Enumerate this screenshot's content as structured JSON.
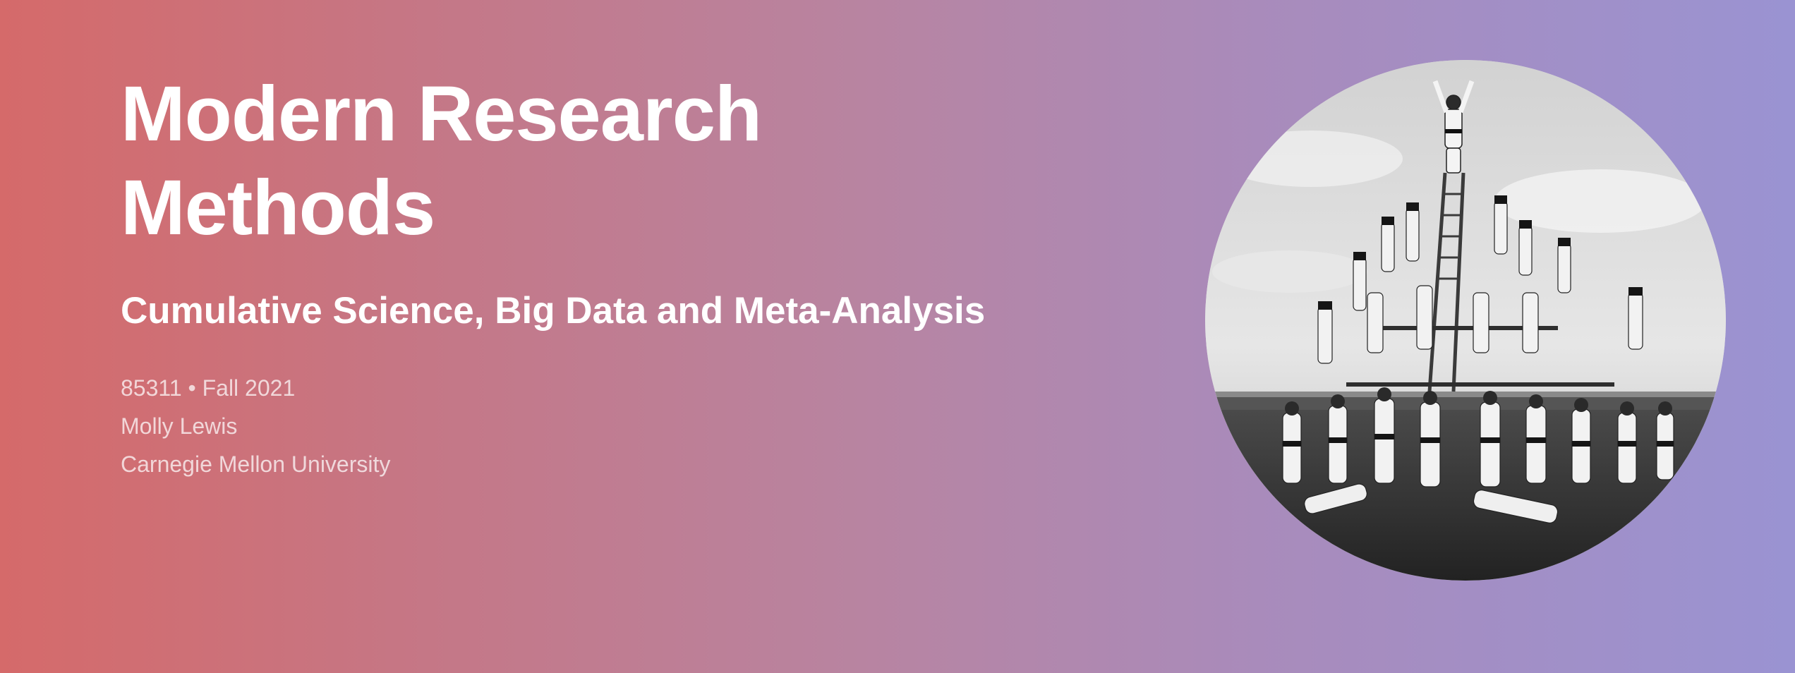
{
  "course": {
    "title_line1": "Modern Research",
    "title_line2": "Methods",
    "subtitle": "Cumulative Science, Big Data and Meta-Analysis",
    "code_term": "85311 • Fall 2021",
    "instructor": "Molly Lewis",
    "institution": "Carnegie Mellon University"
  },
  "hero_image": {
    "description_icon": "gymnast-human-pyramid-photo",
    "style": "black-and-white circular crop"
  },
  "colors": {
    "gradient_left": "#d56a6a",
    "gradient_right": "#9a93d2",
    "title": "#ffffff",
    "meta": "#f0dede"
  }
}
